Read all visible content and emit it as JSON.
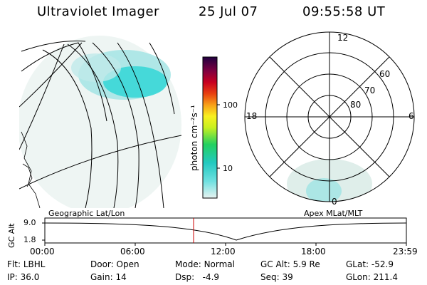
{
  "header": {
    "instrument": "Ultraviolet Imager",
    "date": "25 Jul 07",
    "time": "09:55:58 UT"
  },
  "colorbar": {
    "unit_label": "photon cm⁻²s⁻¹",
    "ticks": [
      "100",
      "10"
    ]
  },
  "polar_plot": {
    "mlt_labels": [
      "12",
      "18",
      "6",
      "0"
    ],
    "lat_labels": [
      "60",
      "70",
      "80"
    ]
  },
  "timeline": {
    "ylabel": "GC Alt",
    "y_ticks": [
      "9.0",
      "1.8"
    ],
    "left_caption": "Geographic Lat/Lon",
    "right_caption": "Apex MLat/MLT",
    "x_ticks": [
      "00:00",
      "06:00",
      "12:00",
      "18:00",
      "23:59"
    ],
    "marker_time_hours": 9.93
  },
  "status": {
    "row1": [
      {
        "key": "Flt:",
        "value": "LBHL"
      },
      {
        "key": "Door:",
        "value": "Open"
      },
      {
        "key": "Mode:",
        "value": "Normal"
      },
      {
        "key": "GC Alt:",
        "value": "5.9 Re"
      },
      {
        "key": "GLat:",
        "value": "-52.9"
      }
    ],
    "row2": [
      {
        "key": "IP:",
        "value": "36.0"
      },
      {
        "key": "Gain:",
        "value": "14"
      },
      {
        "key": "Dsp:",
        "value": "-4.9"
      },
      {
        "key": "Seq:",
        "value": "39"
      },
      {
        "key": "GLon:",
        "value": "211.4"
      }
    ]
  },
  "colors": {
    "aurora": "#33d6d6",
    "aurora_faint": "#cfe6e2",
    "marker": "#cc0000"
  }
}
